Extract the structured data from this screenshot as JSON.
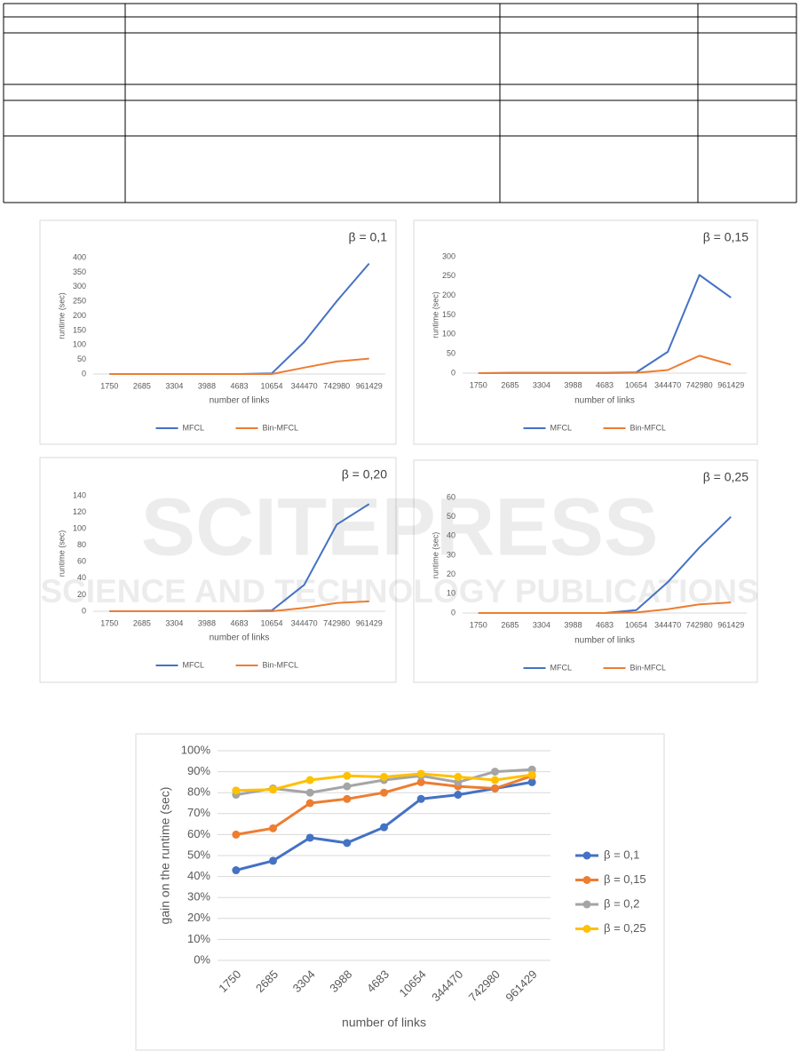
{
  "watermark": {
    "title": "SCITEPRESS",
    "subtitle": "SCIENCE AND TECHNOLOGY PUBLICATIONS"
  },
  "chart_data": [
    {
      "type": "line",
      "title": "β = 0,1",
      "x_label": "number of links",
      "y_label": "runtime (sec)",
      "categories": [
        "1750",
        "2685",
        "3304",
        "3988",
        "4683",
        "10654",
        "344470",
        "742980",
        "961429"
      ],
      "series": [
        {
          "name": "MFCL",
          "color": "#4472c4",
          "values": [
            0,
            0,
            0,
            0,
            0,
            2,
            110,
            250,
            380
          ]
        },
        {
          "name": "Bin-MFCL",
          "color": "#ed7d31",
          "values": [
            0,
            0,
            0,
            0,
            0,
            0,
            22,
            43,
            53
          ]
        }
      ],
      "ylim": [
        0,
        400
      ],
      "yticks": [
        0,
        50,
        100,
        150,
        200,
        250,
        300,
        350,
        400
      ],
      "legend": "bottom"
    },
    {
      "type": "line",
      "title": "β = 0,15",
      "x_label": "number of links",
      "y_label": "runtime (sec)",
      "categories": [
        "1750",
        "2685",
        "3304",
        "3988",
        "4683",
        "10654",
        "344470",
        "742980",
        "961429"
      ],
      "series": [
        {
          "name": "MFCL",
          "color": "#4472c4",
          "values": [
            0,
            1,
            1,
            1,
            1,
            2,
            55,
            253,
            195
          ]
        },
        {
          "name": "Bin-MFCL",
          "color": "#ed7d31",
          "values": [
            0,
            0,
            0,
            0,
            0,
            1,
            8,
            45,
            22
          ]
        }
      ],
      "ylim": [
        0,
        300
      ],
      "yticks": [
        0,
        50,
        100,
        150,
        200,
        250,
        300
      ],
      "legend": "bottom"
    },
    {
      "type": "line",
      "title": "β = 0,20",
      "x_label": "number of links",
      "y_label": "runtime (sec)",
      "categories": [
        "1750",
        "2685",
        "3304",
        "3988",
        "4683",
        "10654",
        "344470",
        "742980",
        "961429"
      ],
      "series": [
        {
          "name": "MFCL",
          "color": "#4472c4",
          "values": [
            0,
            0,
            0,
            0,
            0,
            1,
            32,
            105,
            130
          ]
        },
        {
          "name": "Bin-MFCL",
          "color": "#ed7d31",
          "values": [
            0,
            0,
            0,
            0,
            0,
            0,
            4,
            10,
            12
          ]
        }
      ],
      "ylim": [
        0,
        140
      ],
      "yticks": [
        0,
        20,
        40,
        60,
        80,
        100,
        120,
        140
      ],
      "legend": "bottom"
    },
    {
      "type": "line",
      "title": "β = 0,25",
      "x_label": "number of links",
      "y_label": "runtime (sec)",
      "categories": [
        "1750",
        "2685",
        "3304",
        "3988",
        "4683",
        "10654",
        "344470",
        "742980",
        "961429"
      ],
      "series": [
        {
          "name": "MFCL",
          "color": "#4472c4",
          "values": [
            0,
            0,
            0,
            0,
            0,
            1.5,
            16,
            34,
            50
          ]
        },
        {
          "name": "Bin-MFCL",
          "color": "#ed7d31",
          "values": [
            0,
            0,
            0,
            0,
            0,
            0.3,
            2,
            4.5,
            5.5
          ]
        }
      ],
      "ylim": [
        0,
        60
      ],
      "yticks": [
        0,
        10,
        20,
        30,
        40,
        50,
        60
      ],
      "legend": "bottom"
    },
    {
      "type": "line",
      "markers": true,
      "grid": true,
      "x_label": "number of links",
      "y_label": "gain on the runtime (sec)",
      "categories": [
        "1750",
        "2685",
        "3304",
        "3988",
        "4683",
        "10654",
        "344470",
        "742980",
        "961429"
      ],
      "series": [
        {
          "name": "β = 0,1",
          "color": "#4472c4",
          "values": [
            43,
            47.5,
            58.5,
            56,
            63.5,
            77,
            79,
            82,
            85
          ]
        },
        {
          "name": "β = 0,15",
          "color": "#ed7d31",
          "values": [
            60,
            63,
            75,
            77,
            80,
            85,
            83,
            82,
            88
          ]
        },
        {
          "name": "β = 0,2",
          "color": "#a5a5a5",
          "values": [
            79,
            82,
            80,
            83,
            86,
            88,
            85,
            90,
            91
          ]
        },
        {
          "name": "β = 0,25",
          "color": "#ffc000",
          "values": [
            81,
            81.5,
            86,
            88,
            87.5,
            89,
            87.5,
            86,
            88.5
          ]
        }
      ],
      "ylim": [
        0,
        100
      ],
      "yticks": [
        {
          "value": 0,
          "label": "0%"
        },
        {
          "value": 10,
          "label": "10%"
        },
        {
          "value": 20,
          "label": "20%"
        },
        {
          "value": 30,
          "label": "30%"
        },
        {
          "value": 40,
          "label": "40%"
        },
        {
          "value": 50,
          "label": "50%"
        },
        {
          "value": 60,
          "label": "60%"
        },
        {
          "value": 70,
          "label": "70%"
        },
        {
          "value": 80,
          "label": "80%"
        },
        {
          "value": 90,
          "label": "90%"
        },
        {
          "value": 100,
          "label": "100%"
        }
      ],
      "legend": "right"
    }
  ]
}
